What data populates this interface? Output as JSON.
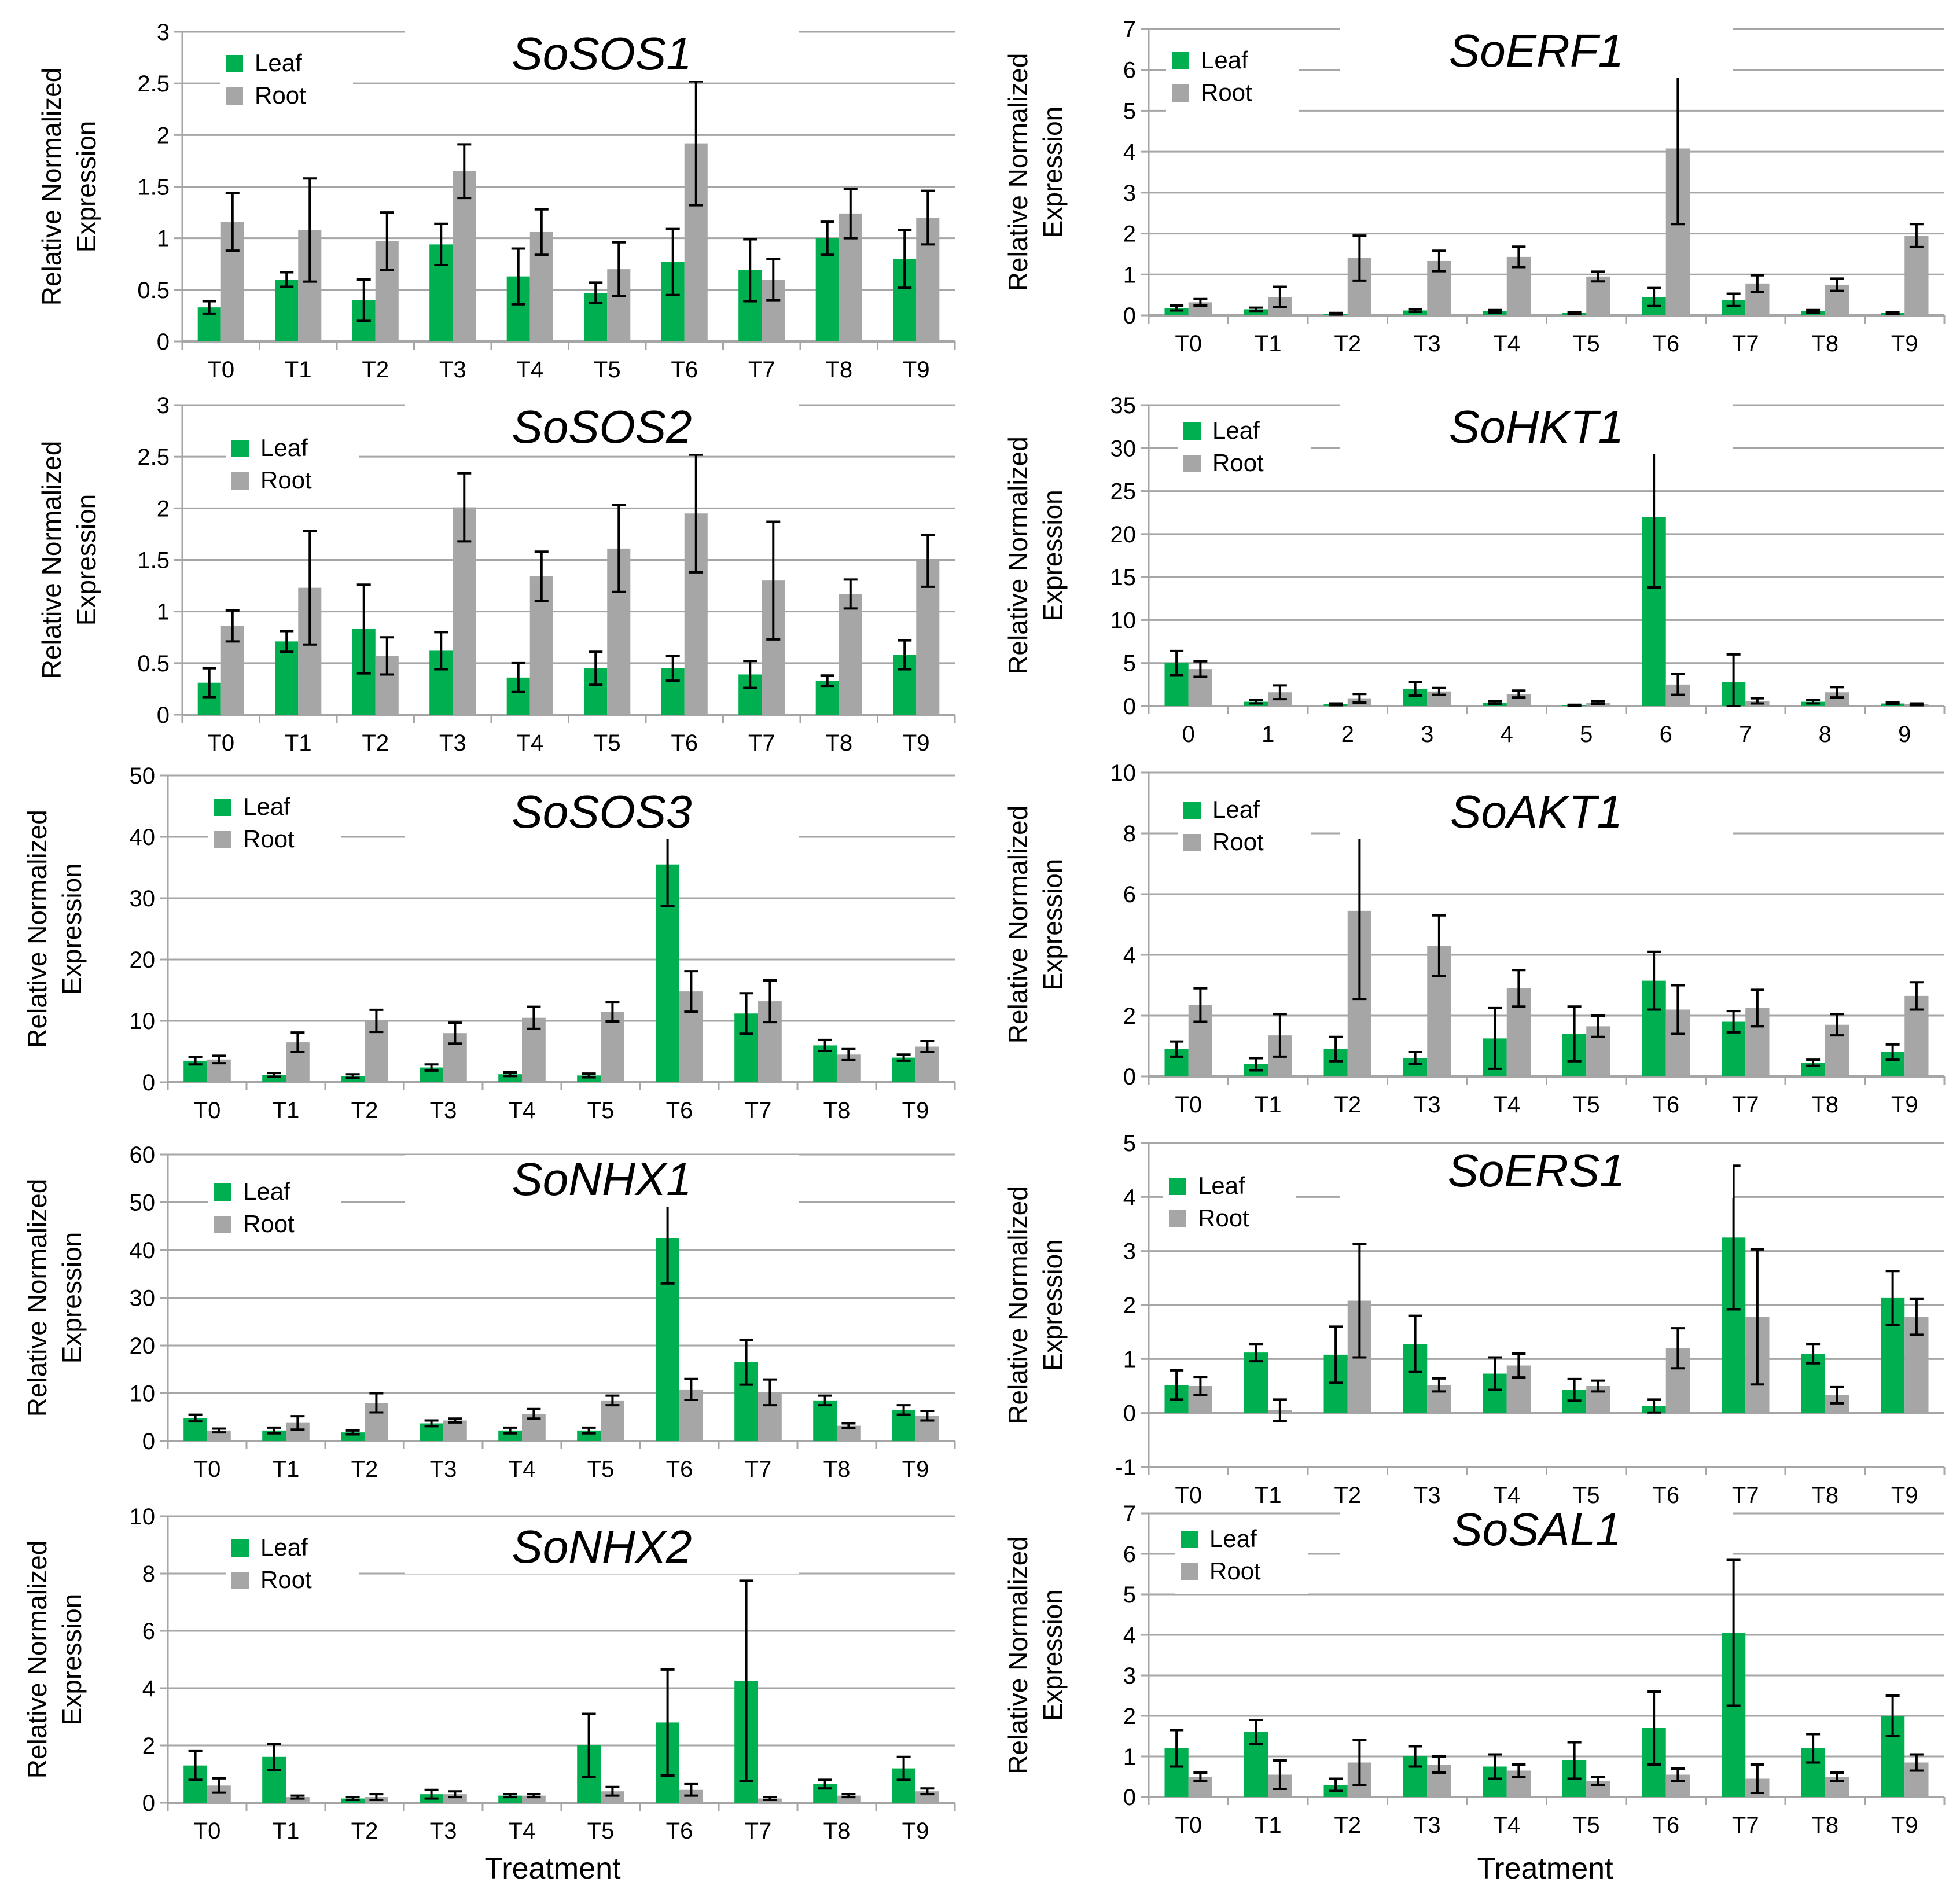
{
  "colors": {
    "leaf": "#00b050",
    "root": "#a6a6a6",
    "grid": "#a6a6a6",
    "error": "#000000"
  },
  "xlabel": "Treatment",
  "chart_data": [
    {
      "type": "bar",
      "title": "SoSOS1",
      "ylabel_line1": "Relative Normalized",
      "ylabel_line2": "Expression",
      "categories": [
        "T0",
        "T1",
        "T2",
        "T3",
        "T4",
        "T5",
        "T6",
        "T7",
        "T8",
        "T9"
      ],
      "ylim": [
        0,
        3
      ],
      "yticks": [
        "0",
        "0.5",
        "1",
        "1.5",
        "2",
        "2.5",
        "3"
      ],
      "legend": [
        "Leaf",
        "Root"
      ],
      "series": [
        {
          "name": "Leaf",
          "values": [
            0.33,
            0.6,
            0.4,
            0.94,
            0.63,
            0.47,
            0.77,
            0.69,
            1.0,
            0.8
          ],
          "errors": [
            0.06,
            0.07,
            0.2,
            0.2,
            0.27,
            0.1,
            0.32,
            0.3,
            0.16,
            0.28
          ]
        },
        {
          "name": "Root",
          "values": [
            1.16,
            1.08,
            0.97,
            1.65,
            1.06,
            0.7,
            1.92,
            0.6,
            1.24,
            1.2
          ],
          "errors": [
            0.28,
            0.5,
            0.28,
            0.26,
            0.22,
            0.26,
            0.6,
            0.2,
            0.24,
            0.26
          ]
        }
      ]
    },
    {
      "type": "bar",
      "title": "SoERF1",
      "ylabel_line1": "Relative Normalized",
      "ylabel_line2": "Expression",
      "categories": [
        "T0",
        "T1",
        "T2",
        "T3",
        "T4",
        "T5",
        "T6",
        "T7",
        "T8",
        "T9"
      ],
      "ylim": [
        0,
        7
      ],
      "yticks": [
        "0",
        "1",
        "2",
        "3",
        "4",
        "5",
        "6",
        "7"
      ],
      "legend": [
        "Leaf",
        "Root"
      ],
      "series": [
        {
          "name": "Leaf",
          "values": [
            0.18,
            0.15,
            0.04,
            0.12,
            0.1,
            0.06,
            0.45,
            0.38,
            0.1,
            0.06
          ],
          "errors": [
            0.06,
            0.04,
            0.02,
            0.03,
            0.03,
            0.02,
            0.22,
            0.15,
            0.03,
            0.02
          ]
        },
        {
          "name": "Root",
          "values": [
            0.32,
            0.45,
            1.4,
            1.33,
            1.43,
            0.95,
            4.08,
            0.78,
            0.75,
            1.95
          ],
          "errors": [
            0.08,
            0.25,
            0.55,
            0.25,
            0.25,
            0.12,
            1.85,
            0.2,
            0.15,
            0.28
          ]
        }
      ]
    },
    {
      "type": "bar",
      "title": "SoSOS2",
      "ylabel_line1": "Relative Normalized",
      "ylabel_line2": "Expression",
      "categories": [
        "T0",
        "T1",
        "T2",
        "T3",
        "T4",
        "T5",
        "T6",
        "T7",
        "T8",
        "T9"
      ],
      "ylim": [
        0,
        3
      ],
      "yticks": [
        "0",
        "0.5",
        "1",
        "1.5",
        "2",
        "2.5",
        "3"
      ],
      "legend": [
        "Leaf",
        "Root"
      ],
      "series": [
        {
          "name": "Leaf",
          "values": [
            0.31,
            0.71,
            0.83,
            0.62,
            0.36,
            0.45,
            0.45,
            0.39,
            0.33,
            0.58
          ],
          "errors": [
            0.14,
            0.1,
            0.43,
            0.18,
            0.14,
            0.16,
            0.12,
            0.13,
            0.05,
            0.14
          ]
        },
        {
          "name": "Root",
          "values": [
            0.86,
            1.23,
            0.57,
            2.01,
            1.34,
            1.61,
            1.95,
            1.3,
            1.17,
            1.49
          ],
          "errors": [
            0.15,
            0.55,
            0.18,
            0.33,
            0.24,
            0.42,
            0.57,
            0.57,
            0.14,
            0.25
          ]
        }
      ]
    },
    {
      "type": "bar",
      "title": "SoHKT1",
      "ylabel_line1": "Relative Normalized",
      "ylabel_line2": "Expression",
      "categories": [
        "0",
        "1",
        "2",
        "3",
        "4",
        "5",
        "6",
        "7",
        "8",
        "9"
      ],
      "ylim": [
        0,
        35
      ],
      "yticks": [
        "0",
        "5",
        "10",
        "15",
        "20",
        "25",
        "30",
        "35"
      ],
      "legend": [
        "Leaf",
        "Root"
      ],
      "series": [
        {
          "name": "Leaf",
          "values": [
            5.0,
            0.5,
            0.2,
            2.0,
            0.4,
            0.1,
            22.0,
            2.8,
            0.5,
            0.3
          ],
          "errors": [
            1.4,
            0.2,
            0.1,
            0.8,
            0.15,
            0.05,
            8.2,
            3.2,
            0.2,
            0.1
          ]
        },
        {
          "name": "Root",
          "values": [
            4.3,
            1.6,
            0.9,
            1.7,
            1.4,
            0.4,
            2.5,
            0.6,
            1.6,
            0.2
          ],
          "errors": [
            0.9,
            0.8,
            0.5,
            0.4,
            0.4,
            0.15,
            1.2,
            0.3,
            0.6,
            0.1
          ]
        }
      ]
    },
    {
      "type": "bar",
      "title": "SoSOS3",
      "ylabel_line1": "Relative Normalized",
      "ylabel_line2": "Expression",
      "categories": [
        "T0",
        "T1",
        "T2",
        "T3",
        "T4",
        "T5",
        "T6",
        "T7",
        "T8",
        "T9"
      ],
      "ylim": [
        0,
        50
      ],
      "yticks": [
        "0",
        "10",
        "20",
        "30",
        "40",
        "50"
      ],
      "legend": [
        "Leaf",
        "Root"
      ],
      "series": [
        {
          "name": "Leaf",
          "values": [
            3.5,
            1.2,
            1.0,
            2.4,
            1.3,
            1.1,
            35.5,
            11.2,
            6.0,
            4.0
          ],
          "errors": [
            0.6,
            0.3,
            0.3,
            0.5,
            0.3,
            0.3,
            6.8,
            3.3,
            0.9,
            0.5
          ]
        },
        {
          "name": "Root",
          "values": [
            3.7,
            6.5,
            10.0,
            8.0,
            10.5,
            11.5,
            14.8,
            13.2,
            4.5,
            5.8
          ],
          "errors": [
            0.6,
            1.6,
            1.8,
            1.7,
            1.8,
            1.6,
            3.3,
            3.4,
            0.9,
            0.9
          ]
        }
      ]
    },
    {
      "type": "bar",
      "title": "SoAKT1",
      "ylabel_line1": "Relative Normalized",
      "ylabel_line2": "Expression",
      "categories": [
        "T0",
        "T1",
        "T2",
        "T3",
        "T4",
        "T5",
        "T6",
        "T7",
        "T8",
        "T9"
      ],
      "ylim": [
        0,
        10
      ],
      "yticks": [
        "0",
        "2",
        "4",
        "6",
        "8",
        "10"
      ],
      "legend": [
        "Leaf",
        "Root"
      ],
      "series": [
        {
          "name": "Leaf",
          "values": [
            0.9,
            0.4,
            0.9,
            0.6,
            1.25,
            1.4,
            3.15,
            1.8,
            0.45,
            0.8
          ],
          "errors": [
            0.25,
            0.2,
            0.4,
            0.2,
            1.0,
            0.9,
            0.95,
            0.35,
            0.1,
            0.25
          ]
        },
        {
          "name": "Root",
          "values": [
            2.35,
            1.35,
            5.45,
            4.3,
            2.9,
            1.65,
            2.2,
            2.25,
            1.7,
            2.65
          ],
          "errors": [
            0.55,
            0.7,
            2.9,
            1.0,
            0.6,
            0.35,
            0.8,
            0.6,
            0.35,
            0.45
          ]
        }
      ]
    },
    {
      "type": "bar",
      "title": "SoNHX1",
      "ylabel_line1": "Relative Normalized",
      "ylabel_line2": "Expression",
      "categories": [
        "T0",
        "T1",
        "T2",
        "T3",
        "T4",
        "T5",
        "T6",
        "T7",
        "T8",
        "T9"
      ],
      "ylim": [
        0,
        60
      ],
      "yticks": [
        "0",
        "10",
        "20",
        "30",
        "40",
        "50",
        "60"
      ],
      "legend": [
        "Leaf",
        "Root"
      ],
      "series": [
        {
          "name": "Leaf",
          "values": [
            4.8,
            2.2,
            1.8,
            3.7,
            2.2,
            2.2,
            42.5,
            16.5,
            8.5,
            6.5
          ],
          "errors": [
            0.7,
            0.6,
            0.4,
            0.6,
            0.6,
            0.6,
            9.5,
            4.7,
            1.0,
            1.0
          ]
        },
        {
          "name": "Root",
          "values": [
            2.2,
            3.8,
            8.0,
            4.3,
            5.7,
            8.5,
            10.8,
            10.2,
            3.2,
            5.3
          ],
          "errors": [
            0.4,
            1.4,
            2.0,
            0.4,
            1.0,
            1.0,
            2.2,
            2.7,
            0.5,
            1.0
          ]
        }
      ]
    },
    {
      "type": "bar",
      "title": "SoERS1",
      "ylabel_line1": "Relative Normalized",
      "ylabel_line2": "Expression",
      "categories": [
        "T0",
        "T1",
        "T2",
        "T3",
        "T4",
        "T5",
        "T6",
        "T7",
        "T8",
        "T9"
      ],
      "ylim": [
        -1,
        5
      ],
      "yticks": [
        "-1",
        "0",
        "1",
        "2",
        "3",
        "4",
        "5"
      ],
      "legend": [
        "Leaf",
        "Root"
      ],
      "series": [
        {
          "name": "Leaf",
          "values": [
            0.52,
            1.12,
            1.08,
            1.28,
            0.73,
            0.43,
            0.13,
            3.25,
            1.1,
            2.13
          ],
          "errors": [
            0.27,
            0.16,
            0.52,
            0.52,
            0.3,
            0.2,
            0.12,
            1.33,
            0.18,
            0.5
          ]
        },
        {
          "name": "Root",
          "values": [
            0.5,
            0.05,
            2.08,
            0.52,
            0.88,
            0.5,
            1.2,
            1.78,
            0.33,
            1.78
          ],
          "errors": [
            0.17,
            0.2,
            1.05,
            0.12,
            0.22,
            0.1,
            0.37,
            1.25,
            0.15,
            0.33
          ]
        }
      ]
    },
    {
      "type": "bar",
      "title": "SoNHX2",
      "ylabel_line1": "Relative Normalized",
      "ylabel_line2": "Expression",
      "categories": [
        "T0",
        "T1",
        "T2",
        "T3",
        "T4",
        "T5",
        "T6",
        "T7",
        "T8",
        "T9"
      ],
      "ylim": [
        0,
        10
      ],
      "yticks": [
        "0",
        "2",
        "4",
        "6",
        "8",
        "10"
      ],
      "legend": [
        "Leaf",
        "Root"
      ],
      "series": [
        {
          "name": "Leaf",
          "values": [
            1.3,
            1.6,
            0.15,
            0.3,
            0.25,
            2.0,
            2.8,
            4.25,
            0.65,
            1.2
          ],
          "errors": [
            0.5,
            0.45,
            0.05,
            0.15,
            0.05,
            1.1,
            1.85,
            3.5,
            0.15,
            0.4
          ]
        },
        {
          "name": "Root",
          "values": [
            0.6,
            0.2,
            0.2,
            0.3,
            0.25,
            0.4,
            0.45,
            0.15,
            0.25,
            0.4
          ],
          "errors": [
            0.25,
            0.05,
            0.1,
            0.1,
            0.05,
            0.15,
            0.2,
            0.05,
            0.05,
            0.1
          ]
        }
      ]
    },
    {
      "type": "bar",
      "title": "SoSAL1",
      "ylabel_line1": "Relative Normalized",
      "ylabel_line2": "Expression",
      "categories": [
        "T0",
        "T1",
        "T2",
        "T3",
        "T4",
        "T5",
        "T6",
        "T7",
        "T8",
        "T9"
      ],
      "ylim": [
        0,
        7
      ],
      "yticks": [
        "0",
        "1",
        "2",
        "3",
        "4",
        "5",
        "6",
        "7"
      ],
      "legend": [
        "Leaf",
        "Root"
      ],
      "series": [
        {
          "name": "Leaf",
          "values": [
            1.2,
            1.6,
            0.3,
            1.0,
            0.75,
            0.9,
            1.7,
            4.05,
            1.2,
            2.0
          ],
          "errors": [
            0.45,
            0.3,
            0.15,
            0.25,
            0.3,
            0.45,
            0.9,
            1.8,
            0.35,
            0.5
          ]
        },
        {
          "name": "Root",
          "values": [
            0.5,
            0.55,
            0.85,
            0.8,
            0.65,
            0.4,
            0.55,
            0.45,
            0.5,
            0.85
          ],
          "errors": [
            0.1,
            0.35,
            0.55,
            0.2,
            0.15,
            0.1,
            0.15,
            0.35,
            0.1,
            0.2
          ]
        }
      ]
    }
  ]
}
